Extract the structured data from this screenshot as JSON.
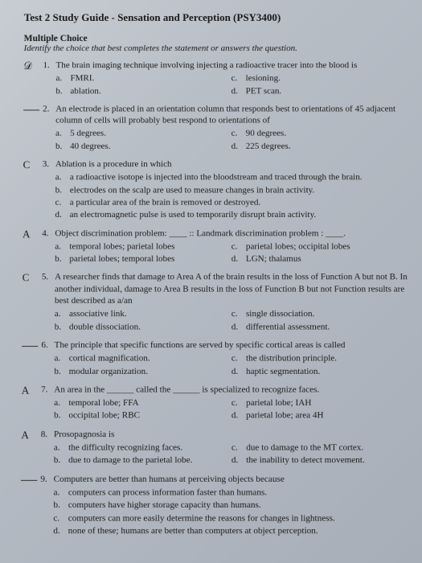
{
  "header": "Test 2 Study Guide - Sensation and Perception (PSY3400)",
  "section": {
    "title": "Multiple Choice",
    "sub": "Identify the choice that best completes the statement or answers the question."
  },
  "questions": [
    {
      "n": "1.",
      "hand": "",
      "icon": "𝒟",
      "stem": "The brain imaging technique involving injecting a radioactive tracer into the blood is",
      "left": [
        [
          "a.",
          "FMRI."
        ],
        [
          "b.",
          "ablation."
        ]
      ],
      "right": [
        [
          "c.",
          "lesioning."
        ],
        [
          "d.",
          "PET scan."
        ]
      ]
    },
    {
      "n": "2.",
      "hand": "",
      "stem": "An electrode is placed in an orientation column that responds best to orientations of 45 adjacent column of cells will probably best respond to orientations of",
      "left": [
        [
          "a.",
          "5 degrees."
        ],
        [
          "b.",
          "40 degrees."
        ]
      ],
      "right": [
        [
          "c.",
          "90 degrees."
        ],
        [
          "d.",
          "225 degrees."
        ]
      ]
    },
    {
      "n": "3.",
      "hand": "C",
      "stem": "Ablation is a procedure in which",
      "full": [
        [
          "a.",
          "a radioactive isotope is injected into the bloodstream and traced through the brain."
        ],
        [
          "b.",
          "electrodes on the scalp are used to measure changes in brain activity."
        ],
        [
          "c.",
          "a particular area of the brain is removed or destroyed."
        ],
        [
          "d.",
          "an electromagnetic pulse is used to temporarily disrupt brain activity."
        ]
      ]
    },
    {
      "n": "4.",
      "hand": "A",
      "stem": "Object discrimination problem: ____ :: Landmark discrimination problem : ____.",
      "left": [
        [
          "a.",
          "temporal lobes; parietal lobes"
        ],
        [
          "b.",
          "parietal lobes; temporal lobes"
        ]
      ],
      "right": [
        [
          "c.",
          "parietal lobes; occipital lobes"
        ],
        [
          "d.",
          "LGN; thalamus"
        ]
      ]
    },
    {
      "n": "5.",
      "hand": "C",
      "stem": "A researcher finds that damage to Area A of the brain results in the loss of Function A but not B. In another individual, damage to Area B results in the loss of Function B but not Function results are best described as a/an",
      "left": [
        [
          "a.",
          "associative link."
        ],
        [
          "b.",
          "double dissociation."
        ]
      ],
      "right": [
        [
          "c.",
          "single dissociation."
        ],
        [
          "d.",
          "differential assessment."
        ]
      ]
    },
    {
      "n": "6.",
      "hand": "",
      "stem": "The principle that specific functions are served by specific cortical areas is called",
      "left": [
        [
          "a.",
          "cortical magnification."
        ],
        [
          "b.",
          "modular organization."
        ]
      ],
      "right": [
        [
          "c.",
          "the distribution principle."
        ],
        [
          "d.",
          "haptic segmentation."
        ]
      ]
    },
    {
      "n": "7.",
      "hand": "A",
      "stem": "An area in the ______ called the ______ is specialized to recognize faces.",
      "left": [
        [
          "a.",
          "temporal lobe; FFA"
        ],
        [
          "b.",
          "occipital lobe; RBC"
        ]
      ],
      "right": [
        [
          "c.",
          "parietal lobe; IAH"
        ],
        [
          "d.",
          "parietal lobe;  area 4H"
        ]
      ]
    },
    {
      "n": "8.",
      "hand": "A",
      "stem": "Prosopagnosia is",
      "left": [
        [
          "a.",
          "the difficulty recognizing faces."
        ],
        [
          "b.",
          "due to damage to the parietal lobe."
        ]
      ],
      "right": [
        [
          "c.",
          "due to damage to the MT cortex."
        ],
        [
          "d.",
          "the inability to detect movement."
        ]
      ]
    },
    {
      "n": "9.",
      "hand": "",
      "stem": "Computers are better than humans at perceiving objects because",
      "full": [
        [
          "a.",
          "computers can process information faster than humans."
        ],
        [
          "b.",
          "computers have higher storage capacity than humans."
        ],
        [
          "c.",
          "computers can more easily determine the reasons for changes in lightness."
        ],
        [
          "d.",
          "none of these; humans are better than computers at object perception."
        ]
      ]
    }
  ]
}
